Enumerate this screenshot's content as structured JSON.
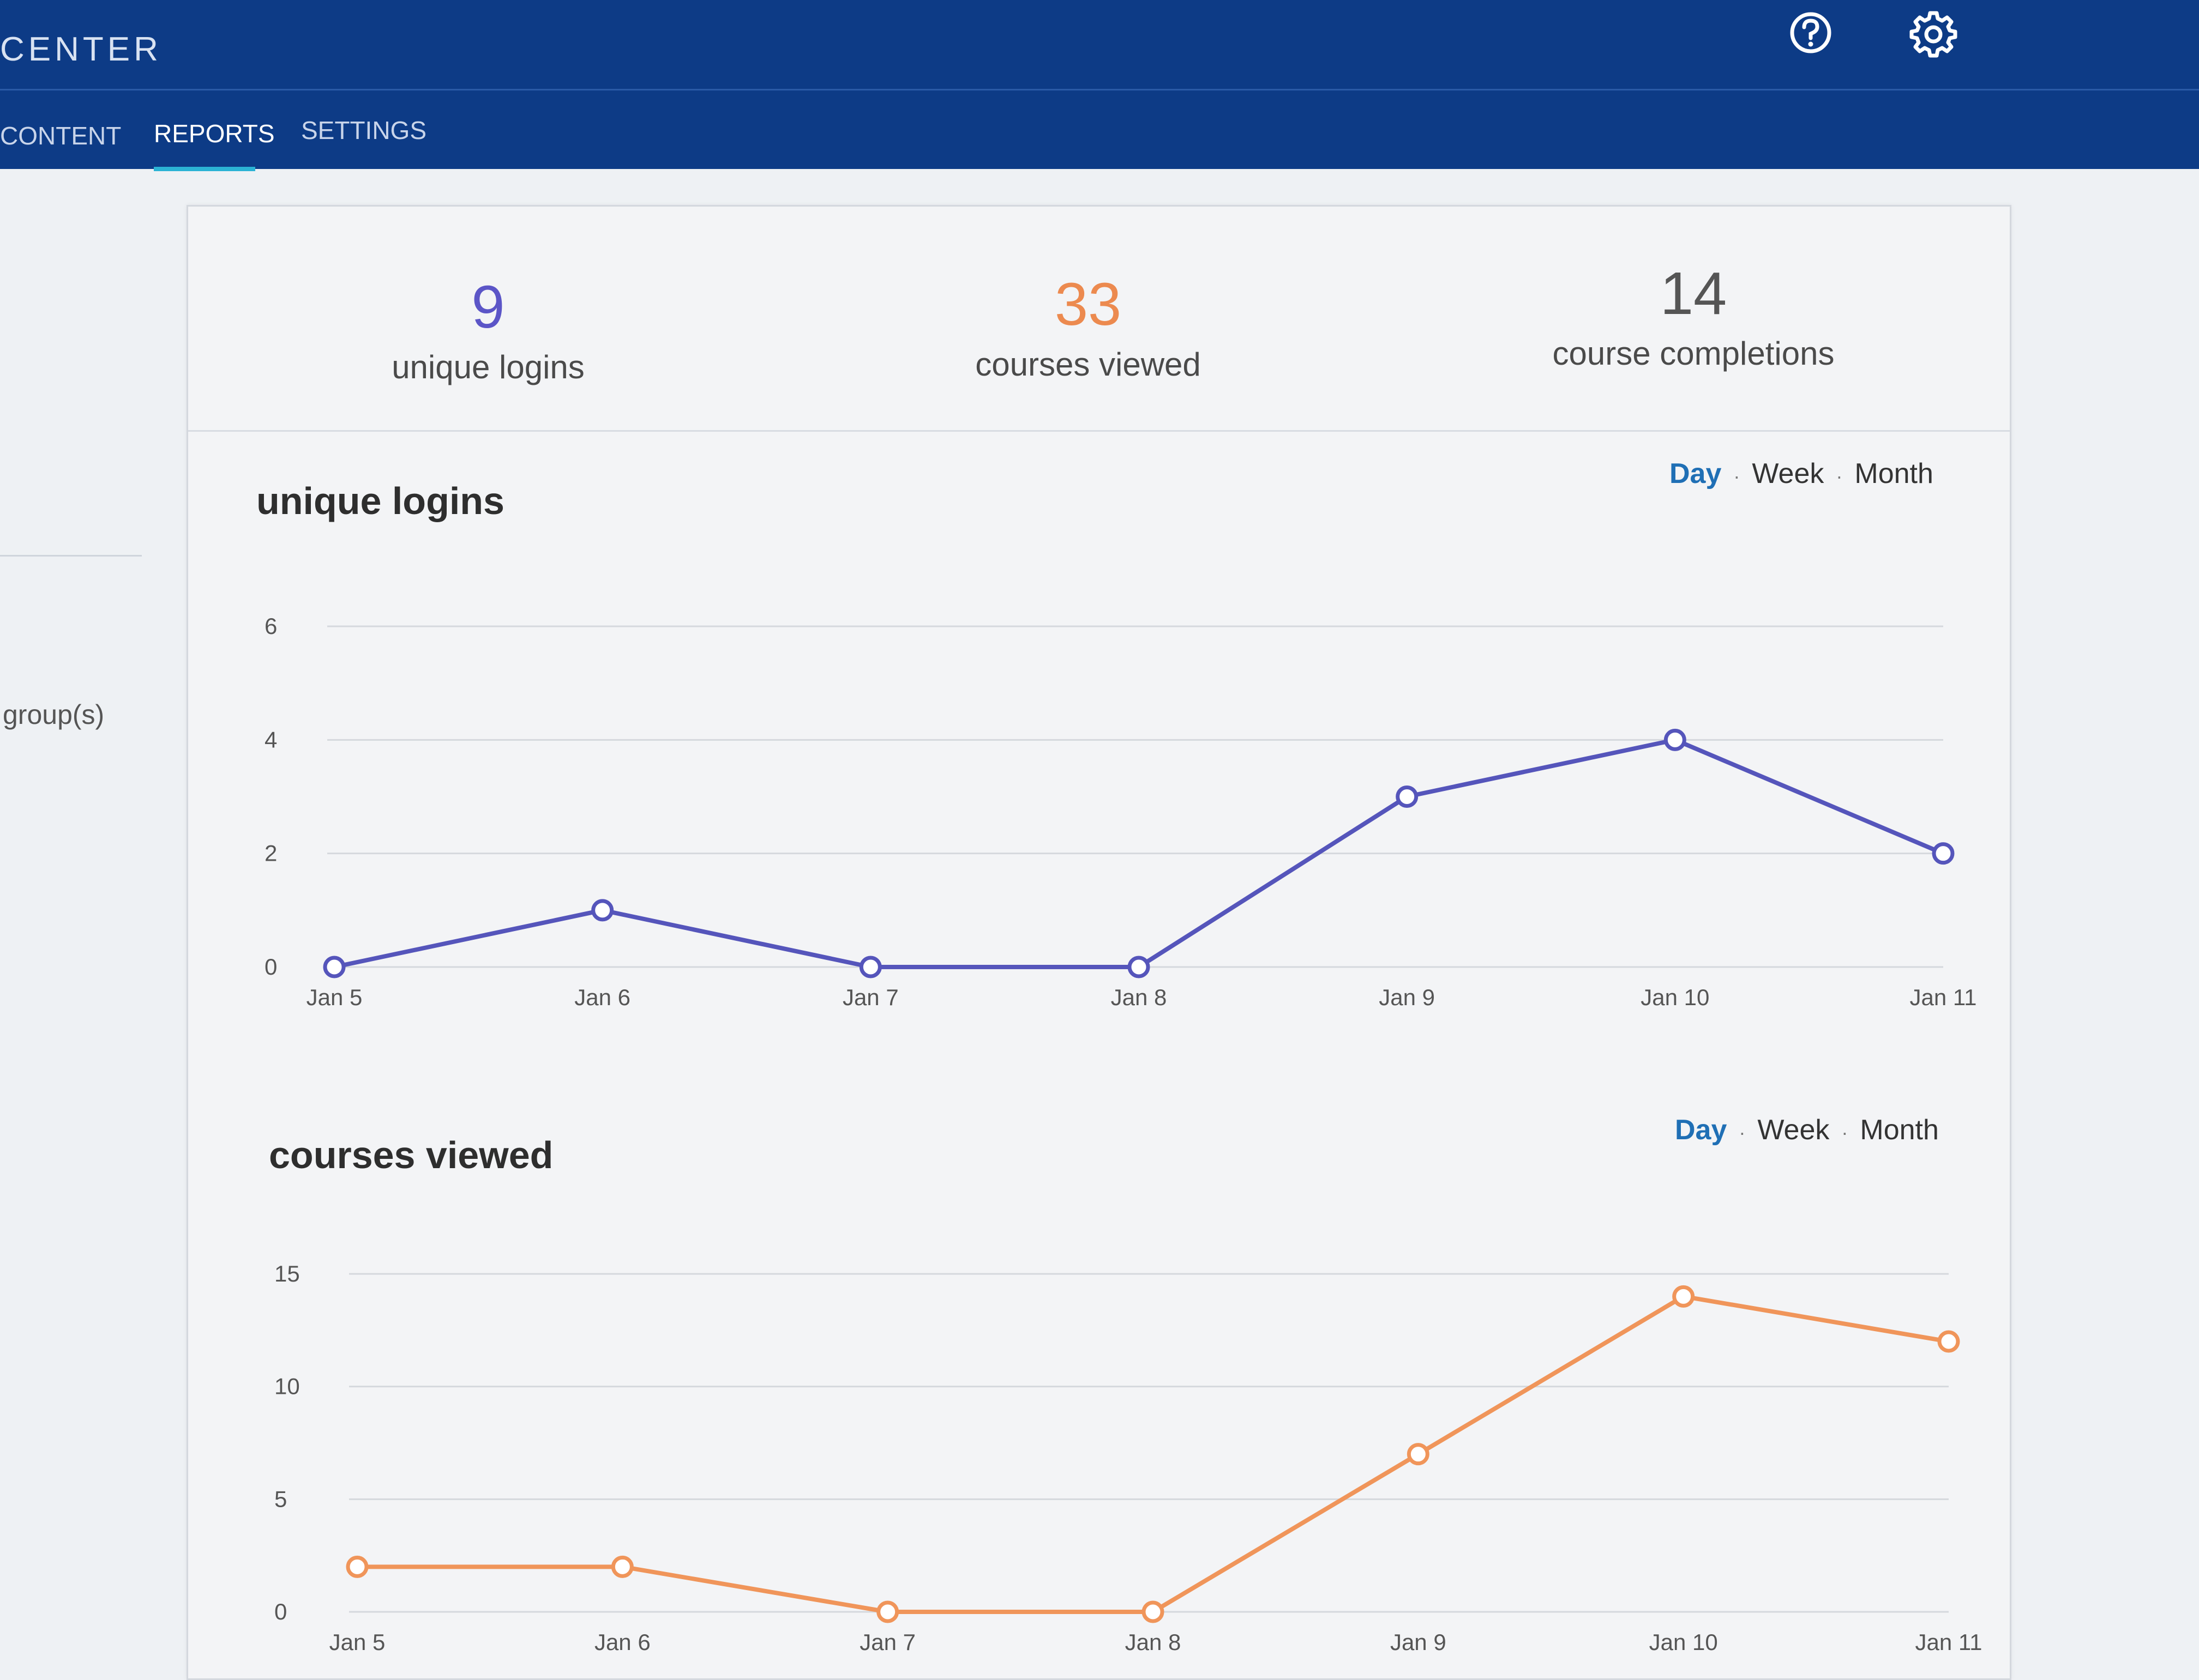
{
  "header": {
    "title": "CENTER",
    "icons": {
      "help": "help-circle-icon",
      "settings": "gear-icon"
    },
    "tabs": [
      {
        "label": "CONTENT",
        "active": false
      },
      {
        "label": "REPORTS",
        "active": true
      },
      {
        "label": "SETTINGS",
        "active": false
      }
    ]
  },
  "sidebar": {
    "groups_label": "group(s)"
  },
  "stats": [
    {
      "value": "9",
      "label": "unique logins",
      "color": "#5b55c7"
    },
    {
      "value": "33",
      "label": "courses viewed",
      "color": "#ec8a4f"
    },
    {
      "value": "14",
      "label": "course completions",
      "color": "#555555"
    }
  ],
  "period_options": [
    "Day",
    "Week",
    "Month"
  ],
  "active_period": "Day",
  "chart_data": [
    {
      "type": "line",
      "title": "unique logins",
      "categories": [
        "Jan 5",
        "Jan 6",
        "Jan 7",
        "Jan 8",
        "Jan 9",
        "Jan 10",
        "Jan 11"
      ],
      "values": [
        0,
        1,
        0,
        0,
        3,
        4,
        2
      ],
      "yticks": [
        0,
        2,
        4,
        6
      ],
      "ylim": [
        0,
        6
      ],
      "color": "#5555bb",
      "grid": true
    },
    {
      "type": "line",
      "title": "courses viewed",
      "categories": [
        "Jan 5",
        "Jan 6",
        "Jan 7",
        "Jan 8",
        "Jan 9",
        "Jan 10",
        "Jan 11"
      ],
      "values": [
        2,
        2,
        0,
        0,
        7,
        14,
        12
      ],
      "yticks": [
        0,
        5,
        10,
        15
      ],
      "ylim": [
        0,
        15
      ],
      "color": "#f0955a",
      "grid": true
    }
  ]
}
